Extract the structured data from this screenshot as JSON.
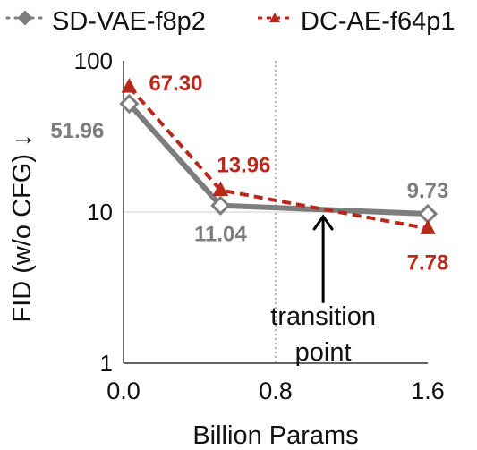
{
  "chart_data": {
    "type": "line",
    "title": "",
    "xlabel": "Billion Params",
    "ylabel": "FID (w/o CFG) ↓",
    "x_scale": "linear",
    "y_scale": "log",
    "xlim": [
      0.0,
      1.6
    ],
    "ylim": [
      1,
      100
    ],
    "x_ticks": [
      {
        "value": 0.0,
        "label": "0.0"
      },
      {
        "value": 0.8,
        "label": "0.8"
      },
      {
        "value": 1.6,
        "label": "1.6"
      }
    ],
    "y_ticks": [
      {
        "value": 1,
        "label": "1"
      },
      {
        "value": 10,
        "label": "10"
      },
      {
        "value": 100,
        "label": "100"
      }
    ],
    "grid": {
      "horizontal_at": [
        10
      ],
      "vertical_dotted_at": [
        0.8
      ]
    },
    "legend_position": "top",
    "series": [
      {
        "name": "SD-VAE-f8p2",
        "color": "#7d7d7d",
        "marker": "diamond",
        "line_style": "solid",
        "x": [
          0.03,
          0.51,
          1.6
        ],
        "y": [
          51.96,
          11.04,
          9.73
        ],
        "labels": [
          "51.96",
          "11.04",
          "9.73"
        ]
      },
      {
        "name": "DC-AE-f64p1",
        "color": "#b8291c",
        "marker": "triangle",
        "line_style": "dashed",
        "x": [
          0.03,
          0.51,
          1.6
        ],
        "y": [
          67.3,
          13.96,
          7.78
        ],
        "labels": [
          "67.30",
          "13.96",
          "7.78"
        ]
      }
    ],
    "annotation": {
      "text_lines": [
        "transition",
        "point"
      ],
      "arrow_x": 1.05,
      "arrow_y_from": 2.5,
      "arrow_y_to": 9.6,
      "text_x": 1.05,
      "text_y": 1.8
    }
  }
}
